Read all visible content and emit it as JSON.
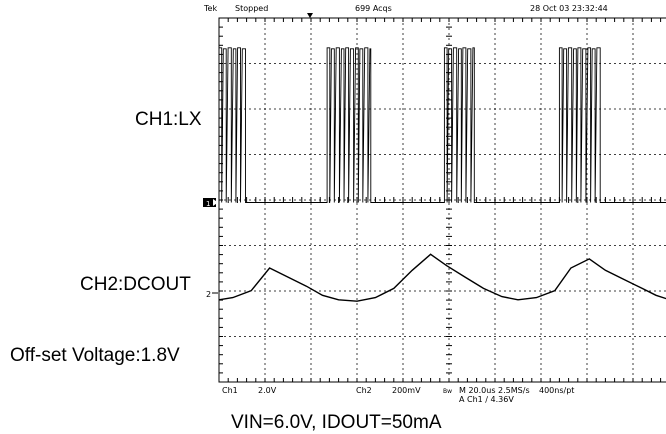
{
  "status_bar": {
    "brand": "Tek",
    "state": "Stopped",
    "acqs": "699 Acqs",
    "datetime": "28 Oct 03 23:32:44"
  },
  "labels": {
    "ch1": "CH1:LX",
    "ch2": "CH2:DCOUT",
    "offset": "Off-set Voltage:1.8V",
    "caption": "VIN=6.0V, IDOUT=50mA"
  },
  "markers": {
    "ch1": "1",
    "ch2": "2"
  },
  "bottom_readout": {
    "ch1_name": "Ch1",
    "ch1_scale": "2.0V",
    "ch2_name": "Ch2",
    "ch2_scale": "200mV",
    "bw": "Bw",
    "timebase": "M 20.0us 2.5MS/s",
    "points": "400ns/pt",
    "trigger": "A  Ch1  ∕  4.36V"
  },
  "colors": {
    "trace": "#000000",
    "grid": "#000000",
    "background": "#ffffff"
  },
  "chart_data": {
    "type": "line",
    "title": "",
    "subtitle": "VIN=6.0V, IDOUT=50mA",
    "xlabel": "",
    "ylabel": "",
    "time_per_div_us": 20,
    "x_divisions": 10,
    "y_divisions": 8,
    "series": [
      {
        "name": "CH1:LX",
        "volts_per_div": 2.0,
        "description": "switching node square wave",
        "low_level_div": 0,
        "high_level_div": 3.4,
        "burst_start_us": [
          -1,
          47,
          98,
          148
        ],
        "burst_end_us": [
          12,
          66,
          111,
          166
        ]
      },
      {
        "name": "CH2:DCOUT",
        "volts_per_div": 0.2,
        "offset_v": 1.8,
        "description": "output ripple sawtooth",
        "x_us": [
          -1,
          6,
          14,
          22,
          30,
          38,
          45,
          52,
          60,
          68,
          76,
          84,
          92,
          99,
          107,
          115,
          123,
          130,
          138,
          146,
          153,
          161,
          168,
          176,
          184,
          190,
          196
        ],
        "y_div": [
          -0.15,
          -0.1,
          0.05,
          0.55,
          0.35,
          0.15,
          -0.05,
          -0.15,
          -0.18,
          -0.1,
          0.1,
          0.5,
          0.85,
          0.6,
          0.35,
          0.1,
          -0.08,
          -0.15,
          -0.1,
          0.05,
          0.55,
          0.75,
          0.5,
          0.3,
          0.1,
          -0.05,
          -0.15
        ]
      }
    ]
  }
}
